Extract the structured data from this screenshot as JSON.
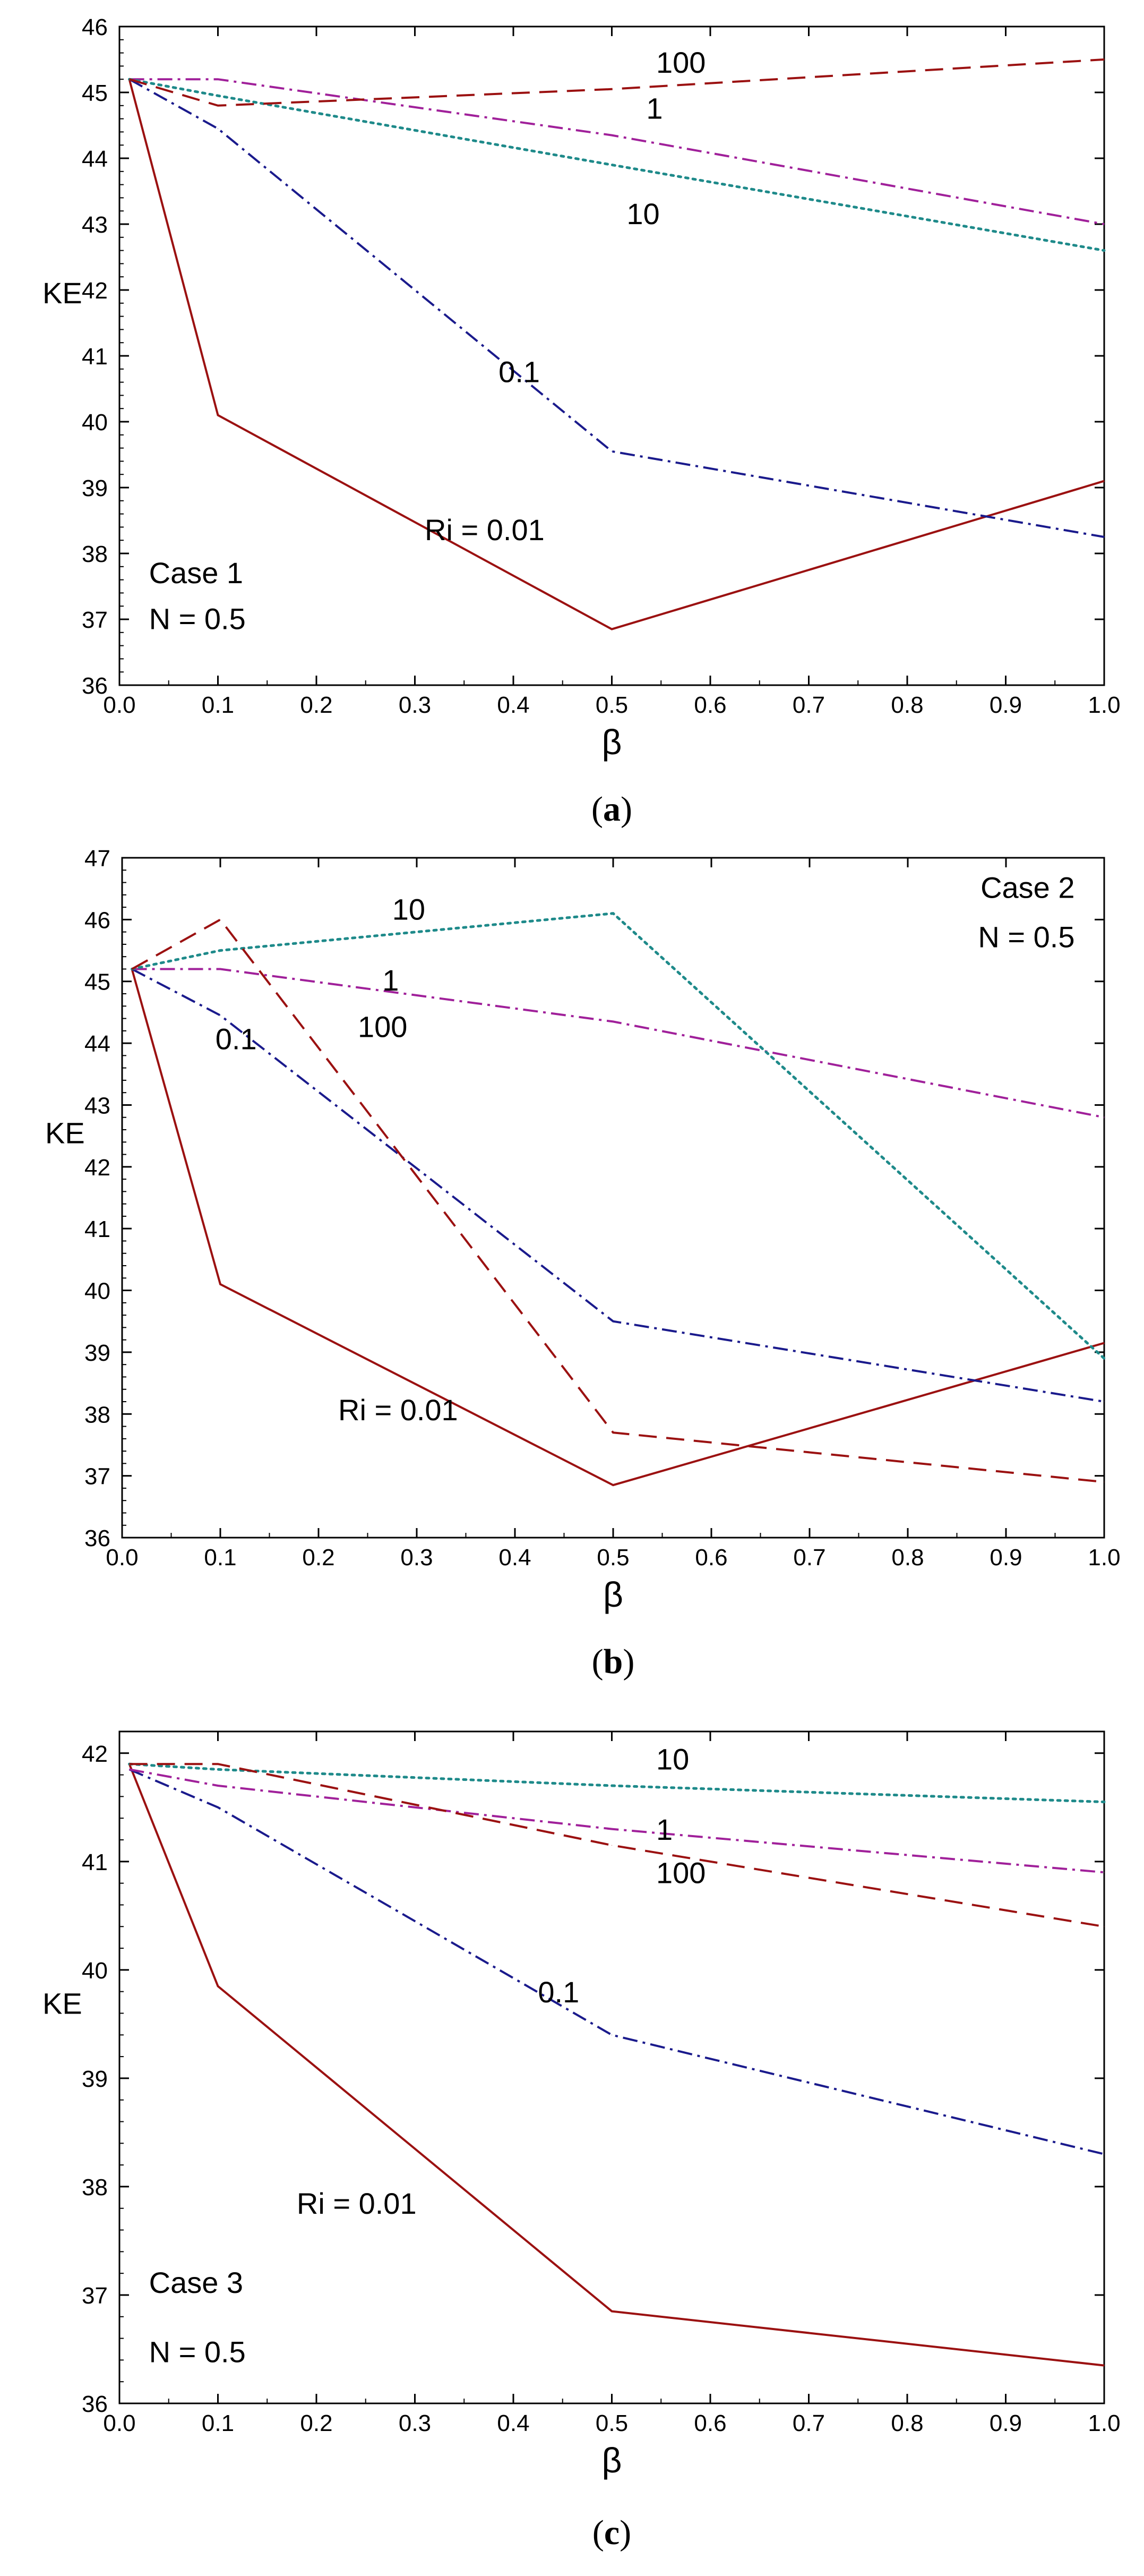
{
  "chart_data": [
    {
      "type": "line",
      "panel_label": "a",
      "xlabel": "β",
      "ylabel": "KE",
      "xlim": [
        0.0,
        1.0
      ],
      "ylim": [
        36,
        46
      ],
      "xticks": [
        "0.0",
        "0.1",
        "0.2",
        "0.3",
        "0.4",
        "0.5",
        "0.6",
        "0.7",
        "0.8",
        "0.9",
        "1.0"
      ],
      "yticks": [
        "36",
        "37",
        "38",
        "39",
        "40",
        "41",
        "42",
        "43",
        "44",
        "45",
        "46"
      ],
      "x": [
        0.01,
        0.1,
        0.5,
        1.0
      ],
      "series": [
        {
          "name": "Ri = 0.01",
          "label": "Ri = 0.01",
          "color": "#9b1111",
          "style": "solid",
          "values": [
            45.2,
            40.1,
            36.85,
            39.1
          ]
        },
        {
          "name": "0.1",
          "label": "0.1",
          "color": "#1a1a8c",
          "style": "dashdot",
          "values": [
            45.2,
            44.45,
            39.55,
            38.25
          ]
        },
        {
          "name": "1",
          "label": "1",
          "color": "#a0209a",
          "style": "dashdot",
          "values": [
            45.2,
            45.2,
            44.35,
            43.0
          ]
        },
        {
          "name": "10",
          "label": "10",
          "color": "#1e8a8a",
          "style": "dotted",
          "values": [
            45.2,
            44.95,
            43.9,
            42.6
          ]
        },
        {
          "name": "100",
          "label": "100",
          "color": "#9b1111",
          "style": "dashed",
          "values": [
            45.2,
            44.8,
            45.05,
            45.5
          ]
        }
      ],
      "annotations": [
        "Case 1",
        "N = 0.5"
      ]
    },
    {
      "type": "line",
      "panel_label": "b",
      "xlabel": "β",
      "ylabel": "KE",
      "xlim": [
        0.0,
        1.0
      ],
      "ylim": [
        36,
        47
      ],
      "xticks": [
        "0.0",
        "0.1",
        "0.2",
        "0.3",
        "0.4",
        "0.5",
        "0.6",
        "0.7",
        "0.8",
        "0.9",
        "1.0"
      ],
      "yticks": [
        "36",
        "37",
        "38",
        "39",
        "40",
        "41",
        "42",
        "43",
        "44",
        "45",
        "46",
        "47"
      ],
      "x": [
        0.01,
        0.1,
        0.5,
        1.0
      ],
      "series": [
        {
          "name": "Ri = 0.01",
          "label": "Ri = 0.01",
          "color": "#9b1111",
          "style": "solid",
          "values": [
            45.2,
            40.1,
            36.85,
            39.15
          ]
        },
        {
          "name": "0.1",
          "label": "0.1",
          "color": "#1a1a8c",
          "style": "dashdot",
          "values": [
            45.2,
            44.45,
            39.5,
            38.2
          ]
        },
        {
          "name": "1",
          "label": "1",
          "color": "#a0209a",
          "style": "dashdot",
          "values": [
            45.2,
            45.2,
            44.35,
            42.8
          ]
        },
        {
          "name": "10",
          "label": "10",
          "color": "#1e8a8a",
          "style": "dotted",
          "values": [
            45.2,
            45.5,
            46.1,
            38.9
          ]
        },
        {
          "name": "100",
          "label": "100",
          "color": "#9b1111",
          "style": "dashed",
          "values": [
            45.2,
            46.0,
            37.7,
            36.9
          ]
        }
      ],
      "annotations": [
        "Case 2",
        "N = 0.5"
      ]
    },
    {
      "type": "line",
      "panel_label": "c",
      "xlabel": "β",
      "ylabel": "KE",
      "xlim": [
        0.0,
        1.0
      ],
      "ylim": [
        36,
        42.2
      ],
      "xticks": [
        "0.0",
        "0.1",
        "0.2",
        "0.3",
        "0.4",
        "0.5",
        "0.6",
        "0.7",
        "0.8",
        "0.9",
        "1.0"
      ],
      "yticks": [
        "36",
        "37",
        "38",
        "39",
        "40",
        "41",
        "42"
      ],
      "x": [
        0.01,
        0.1,
        0.5,
        1.0
      ],
      "series": [
        {
          "name": "Ri = 0.01",
          "label": "Ri = 0.01",
          "color": "#9b1111",
          "style": "solid",
          "values": [
            41.9,
            39.85,
            36.85,
            36.35
          ]
        },
        {
          "name": "0.1",
          "label": "0.1",
          "color": "#1a1a8c",
          "style": "dashdot",
          "values": [
            41.85,
            41.5,
            39.4,
            38.3
          ]
        },
        {
          "name": "1",
          "label": "1",
          "color": "#a0209a",
          "style": "dashdot",
          "values": [
            41.85,
            41.7,
            41.3,
            40.9
          ]
        },
        {
          "name": "10",
          "label": "10",
          "color": "#1e8a8a",
          "style": "dotted",
          "values": [
            41.9,
            41.85,
            41.7,
            41.55
          ]
        },
        {
          "name": "100",
          "label": "100",
          "color": "#9b1111",
          "style": "dashed",
          "values": [
            41.9,
            41.9,
            41.15,
            40.4
          ]
        }
      ],
      "annotations": [
        "Case 3",
        "N = 0.5"
      ]
    }
  ]
}
